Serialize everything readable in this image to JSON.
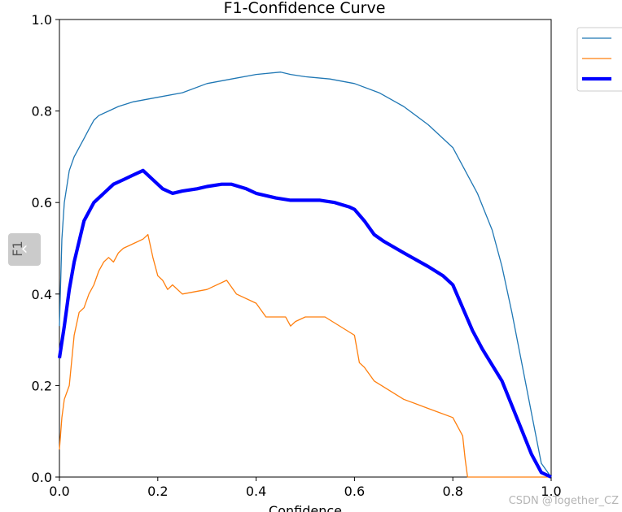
{
  "chart_data": {
    "type": "line",
    "title": "F1-Confidence Curve",
    "xlabel": "Confidence",
    "ylabel": "F1",
    "xlim": [
      0,
      1
    ],
    "ylim": [
      0,
      1
    ],
    "xticks": [
      "0.0",
      "0.2",
      "0.4",
      "0.6",
      "0.8",
      "1.0"
    ],
    "yticks": [
      "0.0",
      "0.2",
      "0.4",
      "0.6",
      "0.8",
      "1.0"
    ],
    "grid": false,
    "legend": "upper-right-outside",
    "series": [
      {
        "color": "#1f77b4",
        "width": 1.3,
        "x": [
          0,
          0.005,
          0.01,
          0.02,
          0.03,
          0.04,
          0.05,
          0.06,
          0.07,
          0.08,
          0.1,
          0.12,
          0.15,
          0.2,
          0.25,
          0.3,
          0.35,
          0.4,
          0.45,
          0.47,
          0.5,
          0.55,
          0.6,
          0.65,
          0.7,
          0.75,
          0.8,
          0.85,
          0.88,
          0.9,
          0.92,
          0.94,
          0.96,
          0.98,
          1.0
        ],
        "y": [
          0.33,
          0.52,
          0.6,
          0.67,
          0.7,
          0.72,
          0.74,
          0.76,
          0.78,
          0.79,
          0.8,
          0.81,
          0.82,
          0.83,
          0.84,
          0.86,
          0.87,
          0.88,
          0.885,
          0.88,
          0.875,
          0.87,
          0.86,
          0.84,
          0.81,
          0.77,
          0.72,
          0.62,
          0.54,
          0.46,
          0.36,
          0.25,
          0.14,
          0.03,
          0.0
        ]
      },
      {
        "color": "#ff7f0e",
        "width": 1.3,
        "x": [
          0,
          0.005,
          0.01,
          0.02,
          0.03,
          0.04,
          0.05,
          0.06,
          0.07,
          0.08,
          0.09,
          0.1,
          0.11,
          0.12,
          0.13,
          0.15,
          0.17,
          0.18,
          0.19,
          0.2,
          0.21,
          0.22,
          0.23,
          0.25,
          0.3,
          0.34,
          0.36,
          0.4,
          0.42,
          0.46,
          0.47,
          0.48,
          0.5,
          0.54,
          0.6,
          0.61,
          0.62,
          0.64,
          0.7,
          0.75,
          0.8,
          0.82,
          0.825,
          0.83,
          0.9,
          1.0
        ],
        "y": [
          0.06,
          0.13,
          0.17,
          0.2,
          0.31,
          0.36,
          0.37,
          0.4,
          0.42,
          0.45,
          0.47,
          0.48,
          0.47,
          0.49,
          0.5,
          0.51,
          0.52,
          0.53,
          0.48,
          0.44,
          0.43,
          0.41,
          0.42,
          0.4,
          0.41,
          0.43,
          0.4,
          0.38,
          0.35,
          0.35,
          0.33,
          0.34,
          0.35,
          0.35,
          0.31,
          0.25,
          0.24,
          0.21,
          0.17,
          0.15,
          0.13,
          0.09,
          0.04,
          0.0,
          0.0,
          0.0
        ]
      },
      {
        "color": "#0000ff",
        "width": 4.2,
        "x": [
          0,
          0.01,
          0.02,
          0.03,
          0.05,
          0.07,
          0.09,
          0.11,
          0.13,
          0.15,
          0.17,
          0.19,
          0.21,
          0.23,
          0.25,
          0.28,
          0.3,
          0.33,
          0.35,
          0.38,
          0.4,
          0.44,
          0.47,
          0.5,
          0.53,
          0.56,
          0.59,
          0.6,
          0.62,
          0.64,
          0.66,
          0.7,
          0.75,
          0.78,
          0.79,
          0.8,
          0.82,
          0.84,
          0.86,
          0.9,
          0.93,
          0.96,
          0.98,
          1.0
        ],
        "y": [
          0.26,
          0.33,
          0.41,
          0.47,
          0.56,
          0.6,
          0.62,
          0.64,
          0.65,
          0.66,
          0.67,
          0.65,
          0.63,
          0.62,
          0.625,
          0.63,
          0.635,
          0.64,
          0.64,
          0.63,
          0.62,
          0.61,
          0.605,
          0.605,
          0.605,
          0.6,
          0.59,
          0.585,
          0.56,
          0.53,
          0.515,
          0.49,
          0.46,
          0.44,
          0.43,
          0.42,
          0.37,
          0.32,
          0.28,
          0.21,
          0.13,
          0.05,
          0.01,
          0.0
        ]
      }
    ]
  },
  "ui": {
    "collapse_glyph": "‹",
    "watermark": "CSDN @Together_CZ"
  }
}
